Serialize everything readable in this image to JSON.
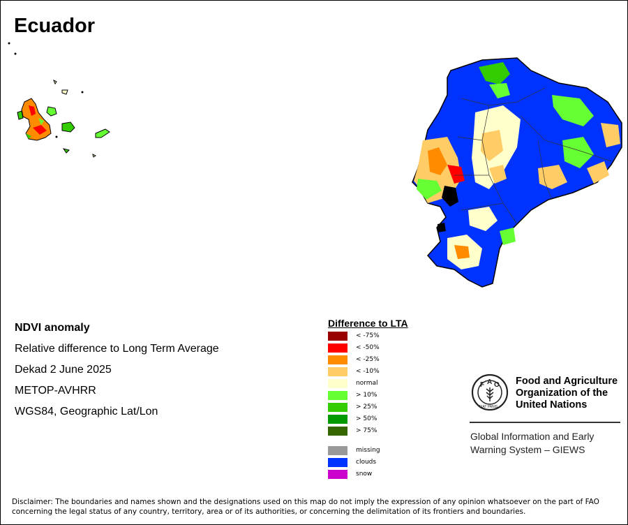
{
  "title": "Ecuador",
  "info": {
    "product": "NDVI anomaly",
    "description": "Relative difference to Long Term Average",
    "period": "Dekad 2 June 2025",
    "sensor": "METOP-AVHRR",
    "projection": "WGS84, Geographic Lat/Lon"
  },
  "legend": {
    "title": "Difference to LTA",
    "items": [
      {
        "label": "< -75%",
        "color": "#990000"
      },
      {
        "label": "< -50%",
        "color": "#ff0000"
      },
      {
        "label": "< -25%",
        "color": "#ff8c00"
      },
      {
        "label": "< -10%",
        "color": "#ffcc66"
      },
      {
        "label": "normal",
        "color": "#ffffcc"
      },
      {
        "label": "> 10%",
        "color": "#66ff33"
      },
      {
        "label": "> 25%",
        "color": "#33cc00"
      },
      {
        "label": "> 50%",
        "color": "#009900"
      },
      {
        "label": "> 75%",
        "color": "#336600"
      },
      {
        "label": "missing",
        "color": "#999999"
      },
      {
        "label": "clouds",
        "color": "#0033ff"
      },
      {
        "label": "snow",
        "color": "#cc00cc"
      }
    ]
  },
  "fao": {
    "name_line1": "Food and Agriculture",
    "name_line2": "Organization of the",
    "name_line3": "United Nations",
    "logo_text": "FIAT PANIS",
    "giews_line1": "Global Information and Early",
    "giews_line2": "Warning System – GIEWS"
  },
  "disclaimer": "Disclaimer: The boundaries and names shown and the designations used on this map do not imply the expression of any opinion whatsoever on the part of FAO concerning the legal status of any country, territory, area or of its authorities, or concerning the delimitation of its frontiers and boundaries."
}
